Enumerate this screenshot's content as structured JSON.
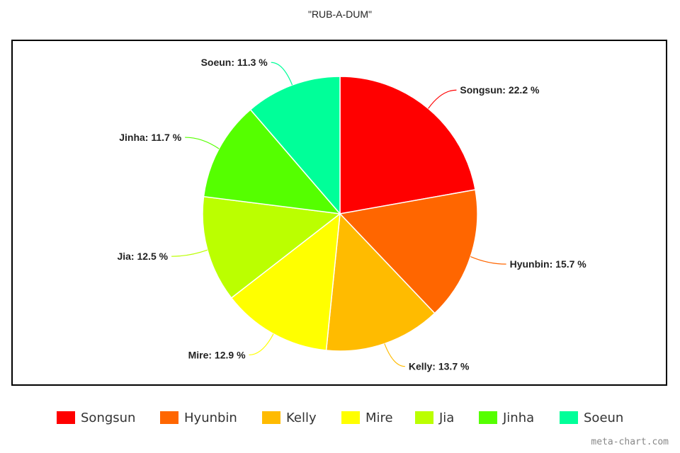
{
  "chart_data": {
    "type": "pie",
    "title": "\"RUB-A-DUM\"",
    "legend_position": "bottom",
    "slices": [
      {
        "name": "Songsun",
        "value": 22.2,
        "label": "Songsun: 22.2 %",
        "color": "#ff0000"
      },
      {
        "name": "Hyunbin",
        "value": 15.7,
        "label": "Hyunbin: 15.7 %",
        "color": "#ff6600"
      },
      {
        "name": "Kelly",
        "value": 13.7,
        "label": "Kelly: 13.7 %",
        "color": "#ffbb00"
      },
      {
        "name": "Mire",
        "value": 12.9,
        "label": "Mire: 12.9 %",
        "color": "#ffff00"
      },
      {
        "name": "Jia",
        "value": 12.5,
        "label": "Jia: 12.5 %",
        "color": "#bbff00"
      },
      {
        "name": "Jinha",
        "value": 11.7,
        "label": "Jinha: 11.7 %",
        "color": "#55ff00"
      },
      {
        "name": "Soeun",
        "value": 11.3,
        "label": "Soeun: 11.3 %",
        "color": "#00ff99"
      }
    ]
  },
  "watermark": "meta-chart.com"
}
